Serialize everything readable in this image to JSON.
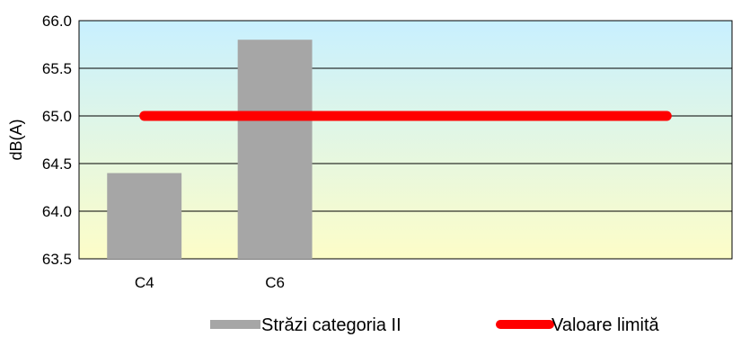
{
  "chart_data": {
    "type": "bar",
    "categories": [
      "C4",
      "C6",
      "",
      "",
      ""
    ],
    "ylabel": "dB(A)",
    "xlabel": "",
    "ylim": [
      63.5,
      66.0
    ],
    "yticks": [
      "63.5",
      "64.0",
      "64.5",
      "65.0",
      "65.5",
      "66.0"
    ],
    "grid": true,
    "background": "gradient cyan-to-yellow",
    "legend_position": "bottom",
    "series": [
      {
        "name": "Străzi categoria II",
        "type": "bar",
        "color": "#a6a6a6",
        "values": [
          64.4,
          65.8,
          null,
          null,
          null
        ]
      },
      {
        "name": "Valoare limită",
        "type": "line",
        "color": "#ff0000",
        "values": [
          65.0,
          65.0,
          65.0,
          65.0,
          65.0
        ]
      }
    ]
  }
}
